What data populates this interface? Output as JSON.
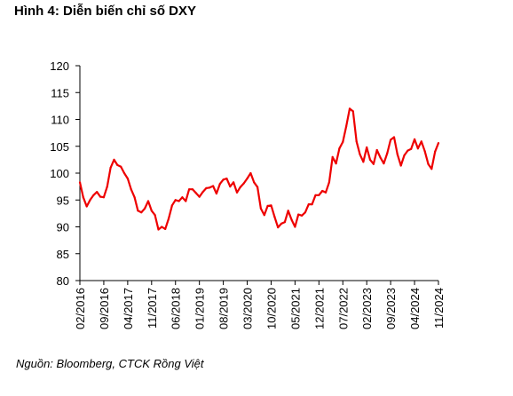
{
  "header": {
    "title": "Hình 4: Diễn biến chỉ số DXY"
  },
  "footer": {
    "source": "Nguồn: Bloomberg,  CTCK Rồng Việt"
  },
  "colors": {
    "series": "#ee0000",
    "axis": "#000000"
  },
  "chart_data": {
    "type": "line",
    "title": "Hình 4: Diễn biến chỉ số DXY",
    "xlabel": "",
    "ylabel": "",
    "ylim": [
      80,
      120
    ],
    "yticks": [
      80,
      85,
      90,
      95,
      100,
      105,
      110,
      115,
      120
    ],
    "xlim": [
      "2016-02",
      "2024-11"
    ],
    "xtick_labels": [
      "02/2016",
      "09/2016",
      "04/2017",
      "11/2017",
      "06/2018",
      "01/2019",
      "08/2019",
      "03/2020",
      "10/2020",
      "05/2021",
      "12/2021",
      "07/2022",
      "02/2023",
      "09/2023",
      "04/2024",
      "11/2024"
    ],
    "grid": false,
    "legend": "none",
    "series": [
      {
        "x": [
          "2016-02",
          "2016-03",
          "2016-04",
          "2016-05",
          "2016-06",
          "2016-07",
          "2016-08",
          "2016-09",
          "2016-10",
          "2016-11",
          "2016-12",
          "2017-01",
          "2017-02",
          "2017-03",
          "2017-04",
          "2017-05",
          "2017-06",
          "2017-07",
          "2017-08",
          "2017-09",
          "2017-10",
          "2017-11",
          "2017-12",
          "2018-01",
          "2018-02",
          "2018-03",
          "2018-04",
          "2018-05",
          "2018-06",
          "2018-07",
          "2018-08",
          "2018-09",
          "2018-10",
          "2018-11",
          "2018-12",
          "2019-01",
          "2019-02",
          "2019-03",
          "2019-04",
          "2019-05",
          "2019-06",
          "2019-07",
          "2019-08",
          "2019-09",
          "2019-10",
          "2019-11",
          "2019-12",
          "2020-01",
          "2020-02",
          "2020-03",
          "2020-04",
          "2020-05",
          "2020-06",
          "2020-07",
          "2020-08",
          "2020-09",
          "2020-10",
          "2020-11",
          "2020-12",
          "2021-01",
          "2021-02",
          "2021-03",
          "2021-04",
          "2021-05",
          "2021-06",
          "2021-07",
          "2021-08",
          "2021-09",
          "2021-10",
          "2021-11",
          "2021-12",
          "2022-01",
          "2022-02",
          "2022-03",
          "2022-04",
          "2022-05",
          "2022-06",
          "2022-07",
          "2022-08",
          "2022-09",
          "2022-10",
          "2022-11",
          "2022-12",
          "2023-01",
          "2023-02",
          "2023-03",
          "2023-04",
          "2023-05",
          "2023-06",
          "2023-07",
          "2023-08",
          "2023-09",
          "2023-10",
          "2023-11",
          "2023-12",
          "2024-01",
          "2024-02",
          "2024-03",
          "2024-04",
          "2024-05",
          "2024-06",
          "2024-07",
          "2024-08",
          "2024-09",
          "2024-10",
          "2024-11"
        ],
        "values": [
          98.3,
          95.5,
          93.8,
          95.0,
          95.9,
          96.5,
          95.6,
          95.5,
          97.5,
          101.0,
          102.5,
          101.5,
          101.2,
          100.0,
          99.0,
          97.0,
          95.5,
          93.0,
          92.7,
          93.4,
          94.8,
          93.0,
          92.2,
          89.5,
          90.0,
          89.6,
          91.5,
          94.0,
          95.0,
          94.8,
          95.5,
          94.8,
          97.0,
          97.0,
          96.3,
          95.6,
          96.5,
          97.2,
          97.3,
          97.6,
          96.2,
          98.0,
          98.8,
          99.0,
          97.5,
          98.3,
          96.4,
          97.4,
          98.1,
          99.0,
          100.0,
          98.3,
          97.4,
          93.4,
          92.2,
          93.9,
          94.0,
          91.9,
          89.9,
          90.6,
          90.9,
          93.0,
          91.3,
          90.0,
          92.3,
          92.1,
          92.7,
          94.2,
          94.2,
          95.9,
          95.9,
          96.7,
          96.4,
          98.3,
          103.0,
          101.8,
          104.6,
          105.8,
          108.7,
          112.0,
          111.5,
          105.9,
          103.5,
          102.1,
          104.8,
          102.5,
          101.7,
          104.3,
          102.9,
          101.8,
          103.7,
          106.2,
          106.7,
          103.5,
          101.4,
          103.3,
          104.2,
          104.5,
          106.3,
          104.6,
          105.9,
          104.1,
          101.7,
          100.8,
          104.0,
          105.6
        ]
      }
    ]
  }
}
